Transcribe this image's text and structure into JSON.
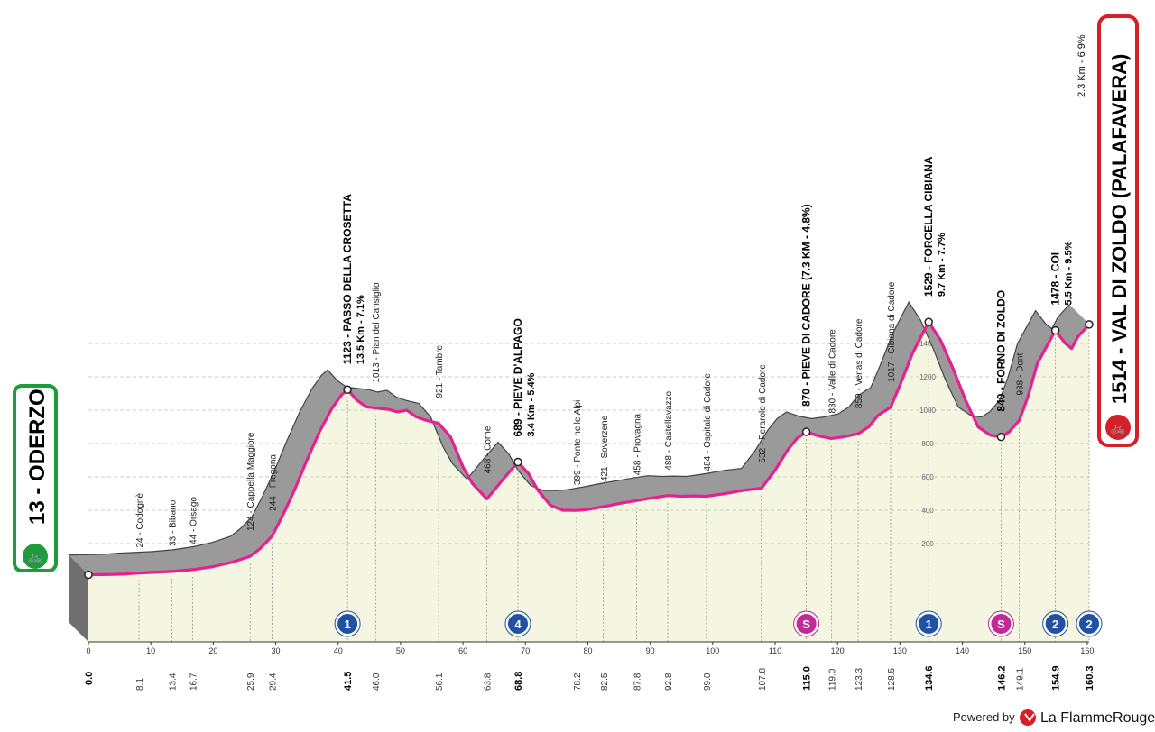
{
  "chart_data": {
    "type": "area",
    "xlabel": "",
    "ylabel": "",
    "xlim": [
      0,
      160.3
    ],
    "ylim": [
      0,
      1514
    ],
    "elevation_ticks": [
      "200",
      "400",
      "600",
      "800",
      "1000",
      "1200",
      "1400"
    ],
    "axis_ticks": [
      "0",
      "10",
      "20",
      "30",
      "40",
      "50",
      "60",
      "70",
      "80",
      "90",
      "100",
      "110",
      "120",
      "130",
      "140",
      "150",
      "160"
    ],
    "start": {
      "label": "13 - ODERZO",
      "km": 0,
      "elev": 13
    },
    "finish": {
      "label": "1514 - VAL DI ZOLDO (PALAFAVERA)",
      "km": 160.3,
      "elev": 1514,
      "last_km": "2.3 Km - 6.9%"
    },
    "profile": [
      {
        "x": 0,
        "y": 13
      },
      {
        "x": 2,
        "y": 14
      },
      {
        "x": 4,
        "y": 15
      },
      {
        "x": 6,
        "y": 18
      },
      {
        "x": 8.1,
        "y": 24
      },
      {
        "x": 10,
        "y": 27
      },
      {
        "x": 13.4,
        "y": 33
      },
      {
        "x": 16.7,
        "y": 44
      },
      {
        "x": 20,
        "y": 62
      },
      {
        "x": 23,
        "y": 88
      },
      {
        "x": 25.9,
        "y": 124
      },
      {
        "x": 27.5,
        "y": 170
      },
      {
        "x": 29.4,
        "y": 244
      },
      {
        "x": 31,
        "y": 360
      },
      {
        "x": 33,
        "y": 520
      },
      {
        "x": 35,
        "y": 700
      },
      {
        "x": 37,
        "y": 870
      },
      {
        "x": 39,
        "y": 1010
      },
      {
        "x": 40.5,
        "y": 1090
      },
      {
        "x": 41.5,
        "y": 1123
      },
      {
        "x": 43,
        "y": 1060
      },
      {
        "x": 44.5,
        "y": 1020
      },
      {
        "x": 46,
        "y": 1013
      },
      {
        "x": 48,
        "y": 1005
      },
      {
        "x": 49.5,
        "y": 990
      },
      {
        "x": 51,
        "y": 1000
      },
      {
        "x": 52.5,
        "y": 960
      },
      {
        "x": 54,
        "y": 940
      },
      {
        "x": 56.1,
        "y": 921
      },
      {
        "x": 58,
        "y": 840
      },
      {
        "x": 60,
        "y": 660
      },
      {
        "x": 61.5,
        "y": 560
      },
      {
        "x": 63.8,
        "y": 468
      },
      {
        "x": 65,
        "y": 520
      },
      {
        "x": 66.5,
        "y": 590
      },
      {
        "x": 68.8,
        "y": 689
      },
      {
        "x": 70.5,
        "y": 620
      },
      {
        "x": 72,
        "y": 520
      },
      {
        "x": 74,
        "y": 430
      },
      {
        "x": 76,
        "y": 400
      },
      {
        "x": 78.2,
        "y": 399
      },
      {
        "x": 80,
        "y": 405
      },
      {
        "x": 82.5,
        "y": 421
      },
      {
        "x": 85,
        "y": 440
      },
      {
        "x": 87.8,
        "y": 458
      },
      {
        "x": 90,
        "y": 472
      },
      {
        "x": 92.8,
        "y": 488
      },
      {
        "x": 95,
        "y": 484
      },
      {
        "x": 97,
        "y": 486
      },
      {
        "x": 99,
        "y": 484
      },
      {
        "x": 102,
        "y": 500
      },
      {
        "x": 105,
        "y": 520
      },
      {
        "x": 107.8,
        "y": 532
      },
      {
        "x": 110,
        "y": 640
      },
      {
        "x": 112,
        "y": 760
      },
      {
        "x": 113.5,
        "y": 830
      },
      {
        "x": 115,
        "y": 870
      },
      {
        "x": 117,
        "y": 845
      },
      {
        "x": 119,
        "y": 830
      },
      {
        "x": 121,
        "y": 840
      },
      {
        "x": 123.3,
        "y": 859
      },
      {
        "x": 125,
        "y": 900
      },
      {
        "x": 126.5,
        "y": 970
      },
      {
        "x": 128.5,
        "y": 1017
      },
      {
        "x": 130,
        "y": 1150
      },
      {
        "x": 132,
        "y": 1340
      },
      {
        "x": 134.6,
        "y": 1529
      },
      {
        "x": 136.5,
        "y": 1420
      },
      {
        "x": 138.5,
        "y": 1250
      },
      {
        "x": 140.5,
        "y": 1060
      },
      {
        "x": 142.5,
        "y": 900
      },
      {
        "x": 144.5,
        "y": 850
      },
      {
        "x": 146.2,
        "y": 840
      },
      {
        "x": 147.5,
        "y": 870
      },
      {
        "x": 149.1,
        "y": 938
      },
      {
        "x": 150.5,
        "y": 1080
      },
      {
        "x": 152,
        "y": 1280
      },
      {
        "x": 154.9,
        "y": 1478
      },
      {
        "x": 156.5,
        "y": 1400
      },
      {
        "x": 157.5,
        "y": 1370
      },
      {
        "x": 158.5,
        "y": 1440
      },
      {
        "x": 160.3,
        "y": 1514
      }
    ],
    "places": [
      {
        "km": 8.1,
        "km_label": "8.1",
        "name": "24 - Codognè",
        "bold": false
      },
      {
        "km": 13.4,
        "km_label": "13.4",
        "name": "33 - Bibano",
        "bold": false
      },
      {
        "km": 16.7,
        "km_label": "16.7",
        "name": "44 - Orsago",
        "bold": false
      },
      {
        "km": 25.9,
        "km_label": "25.9",
        "name": "124 - Cappella Maggiore",
        "bold": false
      },
      {
        "km": 29.4,
        "km_label": "29.4",
        "name": "244 - Fregona",
        "bold": false
      },
      {
        "km": 41.5,
        "km_label": "41.5",
        "name": "1123 - PASSO DELLA CROSETTA",
        "sub": "13.5 Km - 7.1%",
        "bold": true,
        "badge": "1",
        "badge_type": "gpm"
      },
      {
        "km": 46.0,
        "km_label": "46.0",
        "name": "1013 - Pian del Cansiglio",
        "bold": false
      },
      {
        "km": 56.1,
        "km_label": "56.1",
        "name": "921 - Tambre",
        "bold": false
      },
      {
        "km": 63.8,
        "km_label": "63.8",
        "name": "468 - Cornei",
        "bold": false
      },
      {
        "km": 68.8,
        "km_label": "68.8",
        "name": "689 - PIEVE D'ALPAGO",
        "sub": "3.4 Km - 5.4%",
        "bold": true,
        "badge": "4",
        "badge_type": "gpm"
      },
      {
        "km": 78.2,
        "km_label": "78.2",
        "name": "399 - Ponte nelle Alpi",
        "bold": false
      },
      {
        "km": 82.5,
        "km_label": "82.5",
        "name": "421 - Soverzene",
        "bold": false
      },
      {
        "km": 87.8,
        "km_label": "87.8",
        "name": "458 - Provagna",
        "bold": false
      },
      {
        "km": 92.8,
        "km_label": "92.8",
        "name": "488 - Castellavazzo",
        "bold": false
      },
      {
        "km": 99.0,
        "km_label": "99.0",
        "name": "484 - Ospitale di Cadore",
        "bold": false
      },
      {
        "km": 107.8,
        "km_label": "107.8",
        "name": "532 - Perarolo di Cadore",
        "bold": false
      },
      {
        "km": 115.0,
        "km_label": "115.0",
        "name": "870 - PIEVE DI CADORE (7.3 KM - 4.8%)",
        "bold": true,
        "badge": "S",
        "badge_type": "sprint"
      },
      {
        "km": 119.0,
        "km_label": "119.0",
        "name": "830 - Valle di Cadore",
        "bold": false
      },
      {
        "km": 123.3,
        "km_label": "123.3",
        "name": "859 - Venas di Cadore",
        "bold": false
      },
      {
        "km": 128.5,
        "km_label": "128.5",
        "name": "1017 - Cibiana di Cadore",
        "bold": false
      },
      {
        "km": 134.6,
        "km_label": "134.6",
        "name": "1529 - FORCELLA CIBIANA",
        "sub": "9.7 Km - 7.7%",
        "bold": true,
        "badge": "1",
        "badge_type": "gpm"
      },
      {
        "km": 146.2,
        "km_label": "146.2",
        "name": "840 - FORNO DI ZOLDO",
        "bold": true,
        "badge": "S",
        "badge_type": "sprint"
      },
      {
        "km": 149.1,
        "km_label": "149.1",
        "name": "938 - Dont",
        "bold": false
      },
      {
        "km": 154.9,
        "km_label": "154.9",
        "name": "1478 - COI",
        "sub": "5.5 Km - 9.5%",
        "bold": true,
        "badge": "2",
        "badge_type": "gpm"
      },
      {
        "km": 160.3,
        "km_label": "160.3",
        "badge": "2",
        "badge_type": "gpm"
      }
    ],
    "start_km_label": "0.0"
  },
  "footer": {
    "powered_by": "Powered by",
    "brand": "La FlammeRouge"
  },
  "colors": {
    "profile_fill": "#f4f6e1",
    "road_top": "#999999",
    "route": "#e8208f",
    "gpm": "#2151a4",
    "sprint": "#c12a97",
    "start": "#1e9b3a",
    "finish": "#d61f26"
  }
}
